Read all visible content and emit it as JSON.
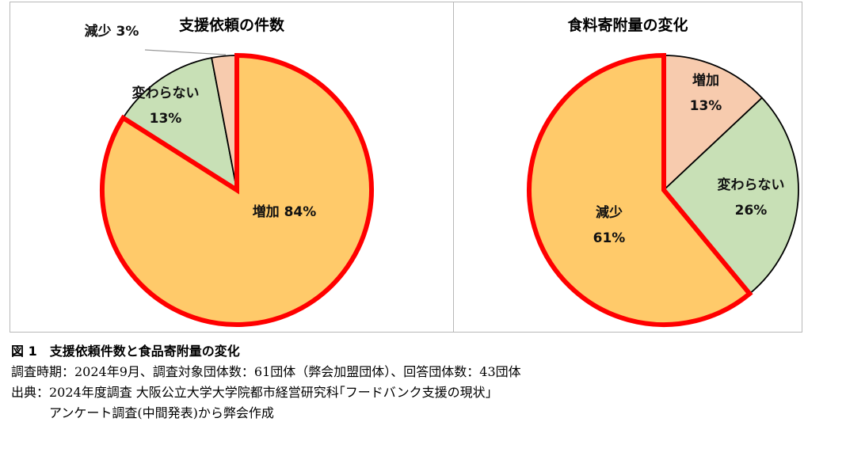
{
  "chart_data": [
    {
      "type": "pie",
      "title": "支援依頼の件数",
      "slices": [
        {
          "label": "増加",
          "value": 84,
          "value_text": "84%",
          "color": "#FFCA6A",
          "highlighted": true
        },
        {
          "label": "変わらない",
          "value": 13,
          "value_text": "13%",
          "color": "#C8E0B6",
          "highlighted": false
        },
        {
          "label": "減少",
          "value": 3,
          "value_text": "3%",
          "color": "#F7CBAE",
          "highlighted": false
        }
      ],
      "highlight_color": "#FF0000"
    },
    {
      "type": "pie",
      "title": "食料寄附量の変化",
      "slices": [
        {
          "label": "増加",
          "value": 13,
          "value_text": "13%",
          "color": "#F7CBAE",
          "highlighted": false
        },
        {
          "label": "変わらない",
          "value": 26,
          "value_text": "26%",
          "color": "#C8E0B6",
          "highlighted": false
        },
        {
          "label": "減少",
          "value": 61,
          "value_text": "61%",
          "color": "#FFCA6A",
          "highlighted": true
        }
      ],
      "highlight_color": "#FF0000"
    }
  ],
  "caption": {
    "title": "図 1　支援依頼件数と食品寄附量の変化",
    "line1": "調査時期：2024年9月、調査対象団体数：61団体（弊会加盟団体）、回答団体数：43団体",
    "line2": "出典：2024年度調査 大阪公立大学大学院都市経営研究科｢フードバンク支援の現状｣",
    "line3": "アンケート調査(中間発表)から弊会作成"
  }
}
